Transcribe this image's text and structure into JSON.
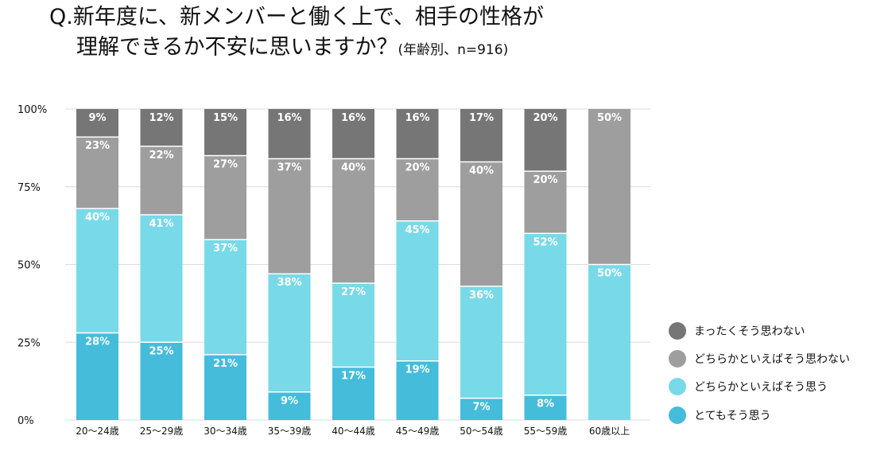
{
  "chart_data": {
    "type": "bar",
    "stacked": true,
    "title_line1": "Q.新年度に、新メンバーと働く上で、相手の性格が",
    "title_line2": "理解できるか不安に思いますか？",
    "title_note": "(年齢別、n=916)",
    "categories": [
      "20〜24歳",
      "25〜29歳",
      "30〜34歳",
      "35〜39歳",
      "40〜44歳",
      "45〜49歳",
      "50〜54歳",
      "55〜59歳",
      "60歳以上"
    ],
    "yticks": [
      "0%",
      "25%",
      "50%",
      "75%",
      "100%"
    ],
    "ylim": [
      0,
      100
    ],
    "grid": true,
    "legend_position": "right",
    "series": [
      {
        "name": "とてもそう思う",
        "color": "#45BCDA",
        "values": [
          28,
          25,
          21,
          9,
          17,
          19,
          7,
          8,
          0
        ]
      },
      {
        "name": "どちらかといえばそう思う",
        "color": "#78D9E8",
        "values": [
          40,
          41,
          37,
          38,
          27,
          45,
          36,
          52,
          50
        ]
      },
      {
        "name": "どちらかといえばそう思わない",
        "color": "#9E9E9E",
        "values": [
          23,
          22,
          27,
          37,
          40,
          20,
          40,
          20,
          50
        ]
      },
      {
        "name": "まったくそう思わない",
        "color": "#767676",
        "values": [
          9,
          12,
          15,
          16,
          16,
          16,
          17,
          20,
          0
        ]
      }
    ]
  }
}
